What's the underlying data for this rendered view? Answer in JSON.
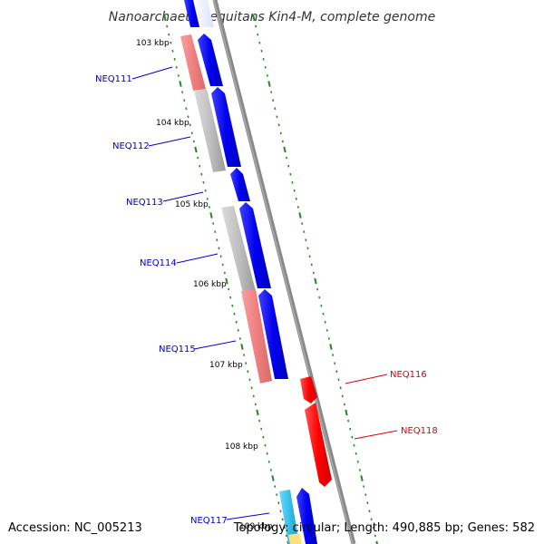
{
  "title": "Nanoarchaeum equitans Kin4-M, complete genome",
  "footer": {
    "accession": "Accession: NC_005213",
    "summary": "Topology: circular; Length: 490,885 bp; Genes: 582"
  },
  "colors": {
    "backbone": "#888888",
    "forward_gene": "#0000ee",
    "reverse_gene": "#ff0000",
    "rna_light": "#f08080",
    "pseudogene": "#c0c0c0",
    "other_gene": "#22bbee",
    "tick": "#228b22",
    "label_forward": "#0000cc",
    "label_reverse": "#dd0000"
  },
  "kbp_markers": [
    "103 kbp",
    "104 kbp",
    "105 kbp",
    "106 kbp",
    "107 kbp",
    "108 kbp",
    "109 kbp"
  ],
  "gene_labels": [
    {
      "name": "NEQ111",
      "strand": "forward"
    },
    {
      "name": "NEQ112",
      "strand": "forward"
    },
    {
      "name": "NEQ113",
      "strand": "forward"
    },
    {
      "name": "NEQ114",
      "strand": "forward"
    },
    {
      "name": "NEQ115",
      "strand": "forward"
    },
    {
      "name": "NEQ116",
      "strand": "reverse"
    },
    {
      "name": "NEQ118",
      "strand": "reverse"
    },
    {
      "name": "NEQ117",
      "strand": "forward"
    }
  ]
}
